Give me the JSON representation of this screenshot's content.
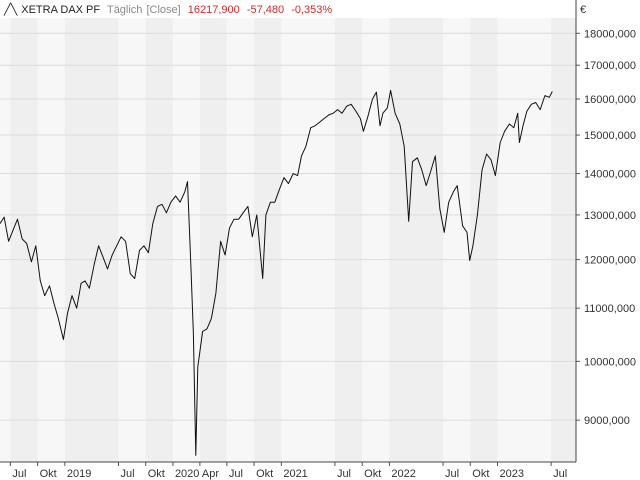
{
  "header": {
    "instrument": "XETRA DAX PF",
    "interval": "Täglich",
    "mode": "[Close]",
    "last": "16217,900",
    "change": "-57,480",
    "change_pct": "-0,353%"
  },
  "currency": "€",
  "colors": {
    "line": "#111111",
    "negative": "#d22b2b",
    "band_a": "#f7f7f7",
    "band_b": "#efefef",
    "grid": "#dcdcdc"
  },
  "chart_data": {
    "type": "line",
    "y_scale": "log",
    "ylim": [
      8350,
      18500
    ],
    "xlim": [
      "2018-05-27",
      "2023-09-23"
    ],
    "grid": true,
    "y_ticks": [
      {
        "value": 9000,
        "label": "9000,000"
      },
      {
        "value": 10000,
        "label": "10000,000"
      },
      {
        "value": 11000,
        "label": "11000,000"
      },
      {
        "value": 12000,
        "label": "12000,000"
      },
      {
        "value": 13000,
        "label": "13000,000"
      },
      {
        "value": 14000,
        "label": "14000,000"
      },
      {
        "value": 15000,
        "label": "15000,000"
      },
      {
        "value": 16000,
        "label": "16000,000"
      },
      {
        "value": 17000,
        "label": "17000,000"
      },
      {
        "value": 18000,
        "label": "18000,000"
      }
    ],
    "x_ticks": [
      {
        "date": "2018-07-01",
        "label": "Jul"
      },
      {
        "date": "2018-10-01",
        "label": "Okt"
      },
      {
        "date": "2019-01-01",
        "label": "2019"
      },
      {
        "date": "2019-07-01",
        "label": "Jul"
      },
      {
        "date": "2019-10-01",
        "label": "Okt"
      },
      {
        "date": "2020-01-01",
        "label": "2020"
      },
      {
        "date": "2020-04-01",
        "label": "Apr"
      },
      {
        "date": "2020-07-01",
        "label": "Jul"
      },
      {
        "date": "2020-10-01",
        "label": "Okt"
      },
      {
        "date": "2021-01-01",
        "label": "2021"
      },
      {
        "date": "2021-07-01",
        "label": "Jul"
      },
      {
        "date": "2021-10-01",
        "label": "Okt"
      },
      {
        "date": "2022-01-01",
        "label": "2022"
      },
      {
        "date": "2022-07-01",
        "label": "Jul"
      },
      {
        "date": "2022-10-01",
        "label": "Okt"
      },
      {
        "date": "2023-01-01",
        "label": "2023"
      },
      {
        "date": "2023-07-01",
        "label": "Jul"
      }
    ],
    "series": [
      {
        "name": "XETRA DAX PF",
        "points": [
          [
            "2018-05-27",
            12800
          ],
          [
            "2018-06-10",
            12950
          ],
          [
            "2018-06-25",
            12400
          ],
          [
            "2018-07-10",
            12650
          ],
          [
            "2018-07-25",
            12900
          ],
          [
            "2018-08-10",
            12450
          ],
          [
            "2018-08-25",
            12350
          ],
          [
            "2018-09-10",
            11950
          ],
          [
            "2018-09-25",
            12300
          ],
          [
            "2018-10-10",
            11550
          ],
          [
            "2018-10-25",
            11250
          ],
          [
            "2018-11-10",
            11450
          ],
          [
            "2018-11-25",
            11100
          ],
          [
            "2018-12-10",
            10800
          ],
          [
            "2018-12-27",
            10400
          ],
          [
            "2019-01-10",
            10900
          ],
          [
            "2019-01-25",
            11250
          ],
          [
            "2019-02-10",
            11000
          ],
          [
            "2019-02-25",
            11500
          ],
          [
            "2019-03-10",
            11550
          ],
          [
            "2019-03-25",
            11400
          ],
          [
            "2019-04-10",
            11900
          ],
          [
            "2019-04-25",
            12300
          ],
          [
            "2019-05-10",
            12050
          ],
          [
            "2019-05-25",
            11800
          ],
          [
            "2019-06-10",
            12100
          ],
          [
            "2019-06-25",
            12300
          ],
          [
            "2019-07-10",
            12500
          ],
          [
            "2019-07-25",
            12400
          ],
          [
            "2019-08-10",
            11700
          ],
          [
            "2019-08-25",
            11600
          ],
          [
            "2019-09-10",
            12200
          ],
          [
            "2019-09-25",
            12300
          ],
          [
            "2019-10-10",
            12150
          ],
          [
            "2019-10-25",
            12800
          ],
          [
            "2019-11-10",
            13200
          ],
          [
            "2019-11-25",
            13250
          ],
          [
            "2019-12-10",
            13050
          ],
          [
            "2019-12-25",
            13300
          ],
          [
            "2020-01-10",
            13450
          ],
          [
            "2020-01-25",
            13300
          ],
          [
            "2020-02-10",
            13550
          ],
          [
            "2020-02-19",
            13800
          ],
          [
            "2020-03-02",
            11800
          ],
          [
            "2020-03-10",
            10500
          ],
          [
            "2020-03-18",
            8450
          ],
          [
            "2020-03-25",
            9900
          ],
          [
            "2020-04-10",
            10550
          ],
          [
            "2020-04-25",
            10600
          ],
          [
            "2020-05-10",
            10800
          ],
          [
            "2020-05-25",
            11300
          ],
          [
            "2020-06-10",
            12400
          ],
          [
            "2020-06-25",
            12100
          ],
          [
            "2020-07-10",
            12700
          ],
          [
            "2020-07-25",
            12900
          ],
          [
            "2020-08-10",
            12900
          ],
          [
            "2020-08-25",
            13050
          ],
          [
            "2020-09-10",
            13200
          ],
          [
            "2020-09-25",
            12500
          ],
          [
            "2020-10-10",
            13000
          ],
          [
            "2020-10-30",
            11600
          ],
          [
            "2020-11-10",
            13000
          ],
          [
            "2020-11-25",
            13300
          ],
          [
            "2020-12-10",
            13300
          ],
          [
            "2020-12-25",
            13600
          ],
          [
            "2021-01-10",
            13900
          ],
          [
            "2021-01-25",
            13750
          ],
          [
            "2021-02-10",
            14000
          ],
          [
            "2021-02-25",
            13950
          ],
          [
            "2021-03-10",
            14450
          ],
          [
            "2021-03-25",
            14700
          ],
          [
            "2021-04-10",
            15200
          ],
          [
            "2021-04-25",
            15250
          ],
          [
            "2021-05-10",
            15350
          ],
          [
            "2021-05-25",
            15450
          ],
          [
            "2021-06-10",
            15550
          ],
          [
            "2021-06-25",
            15600
          ],
          [
            "2021-07-10",
            15700
          ],
          [
            "2021-07-25",
            15600
          ],
          [
            "2021-08-10",
            15800
          ],
          [
            "2021-08-25",
            15850
          ],
          [
            "2021-09-10",
            15650
          ],
          [
            "2021-09-25",
            15450
          ],
          [
            "2021-10-05",
            15100
          ],
          [
            "2021-10-20",
            15500
          ],
          [
            "2021-11-05",
            16000
          ],
          [
            "2021-11-18",
            16200
          ],
          [
            "2021-11-30",
            15250
          ],
          [
            "2021-12-10",
            15600
          ],
          [
            "2021-12-25",
            15750
          ],
          [
            "2022-01-05",
            16250
          ],
          [
            "2022-01-20",
            15600
          ],
          [
            "2022-02-05",
            15300
          ],
          [
            "2022-02-20",
            14700
          ],
          [
            "2022-03-07",
            12850
          ],
          [
            "2022-03-20",
            14300
          ],
          [
            "2022-04-05",
            14400
          ],
          [
            "2022-04-20",
            14100
          ],
          [
            "2022-05-05",
            13700
          ],
          [
            "2022-05-20",
            14050
          ],
          [
            "2022-06-05",
            14450
          ],
          [
            "2022-06-20",
            13150
          ],
          [
            "2022-07-05",
            12600
          ],
          [
            "2022-07-20",
            13300
          ],
          [
            "2022-08-05",
            13550
          ],
          [
            "2022-08-18",
            13700
          ],
          [
            "2022-09-05",
            12750
          ],
          [
            "2022-09-20",
            12600
          ],
          [
            "2022-09-29",
            11980
          ],
          [
            "2022-10-10",
            12300
          ],
          [
            "2022-10-25",
            13000
          ],
          [
            "2022-11-10",
            14100
          ],
          [
            "2022-11-25",
            14500
          ],
          [
            "2022-12-10",
            14350
          ],
          [
            "2022-12-25",
            13950
          ],
          [
            "2023-01-10",
            14800
          ],
          [
            "2023-01-25",
            15100
          ],
          [
            "2023-02-10",
            15300
          ],
          [
            "2023-02-25",
            15200
          ],
          [
            "2023-03-10",
            15600
          ],
          [
            "2023-03-16",
            14800
          ],
          [
            "2023-03-28",
            15250
          ],
          [
            "2023-04-10",
            15650
          ],
          [
            "2023-04-25",
            15850
          ],
          [
            "2023-05-10",
            15900
          ],
          [
            "2023-05-25",
            15700
          ],
          [
            "2023-06-10",
            16100
          ],
          [
            "2023-06-25",
            16050
          ],
          [
            "2023-07-05",
            16217.9
          ]
        ]
      }
    ]
  }
}
